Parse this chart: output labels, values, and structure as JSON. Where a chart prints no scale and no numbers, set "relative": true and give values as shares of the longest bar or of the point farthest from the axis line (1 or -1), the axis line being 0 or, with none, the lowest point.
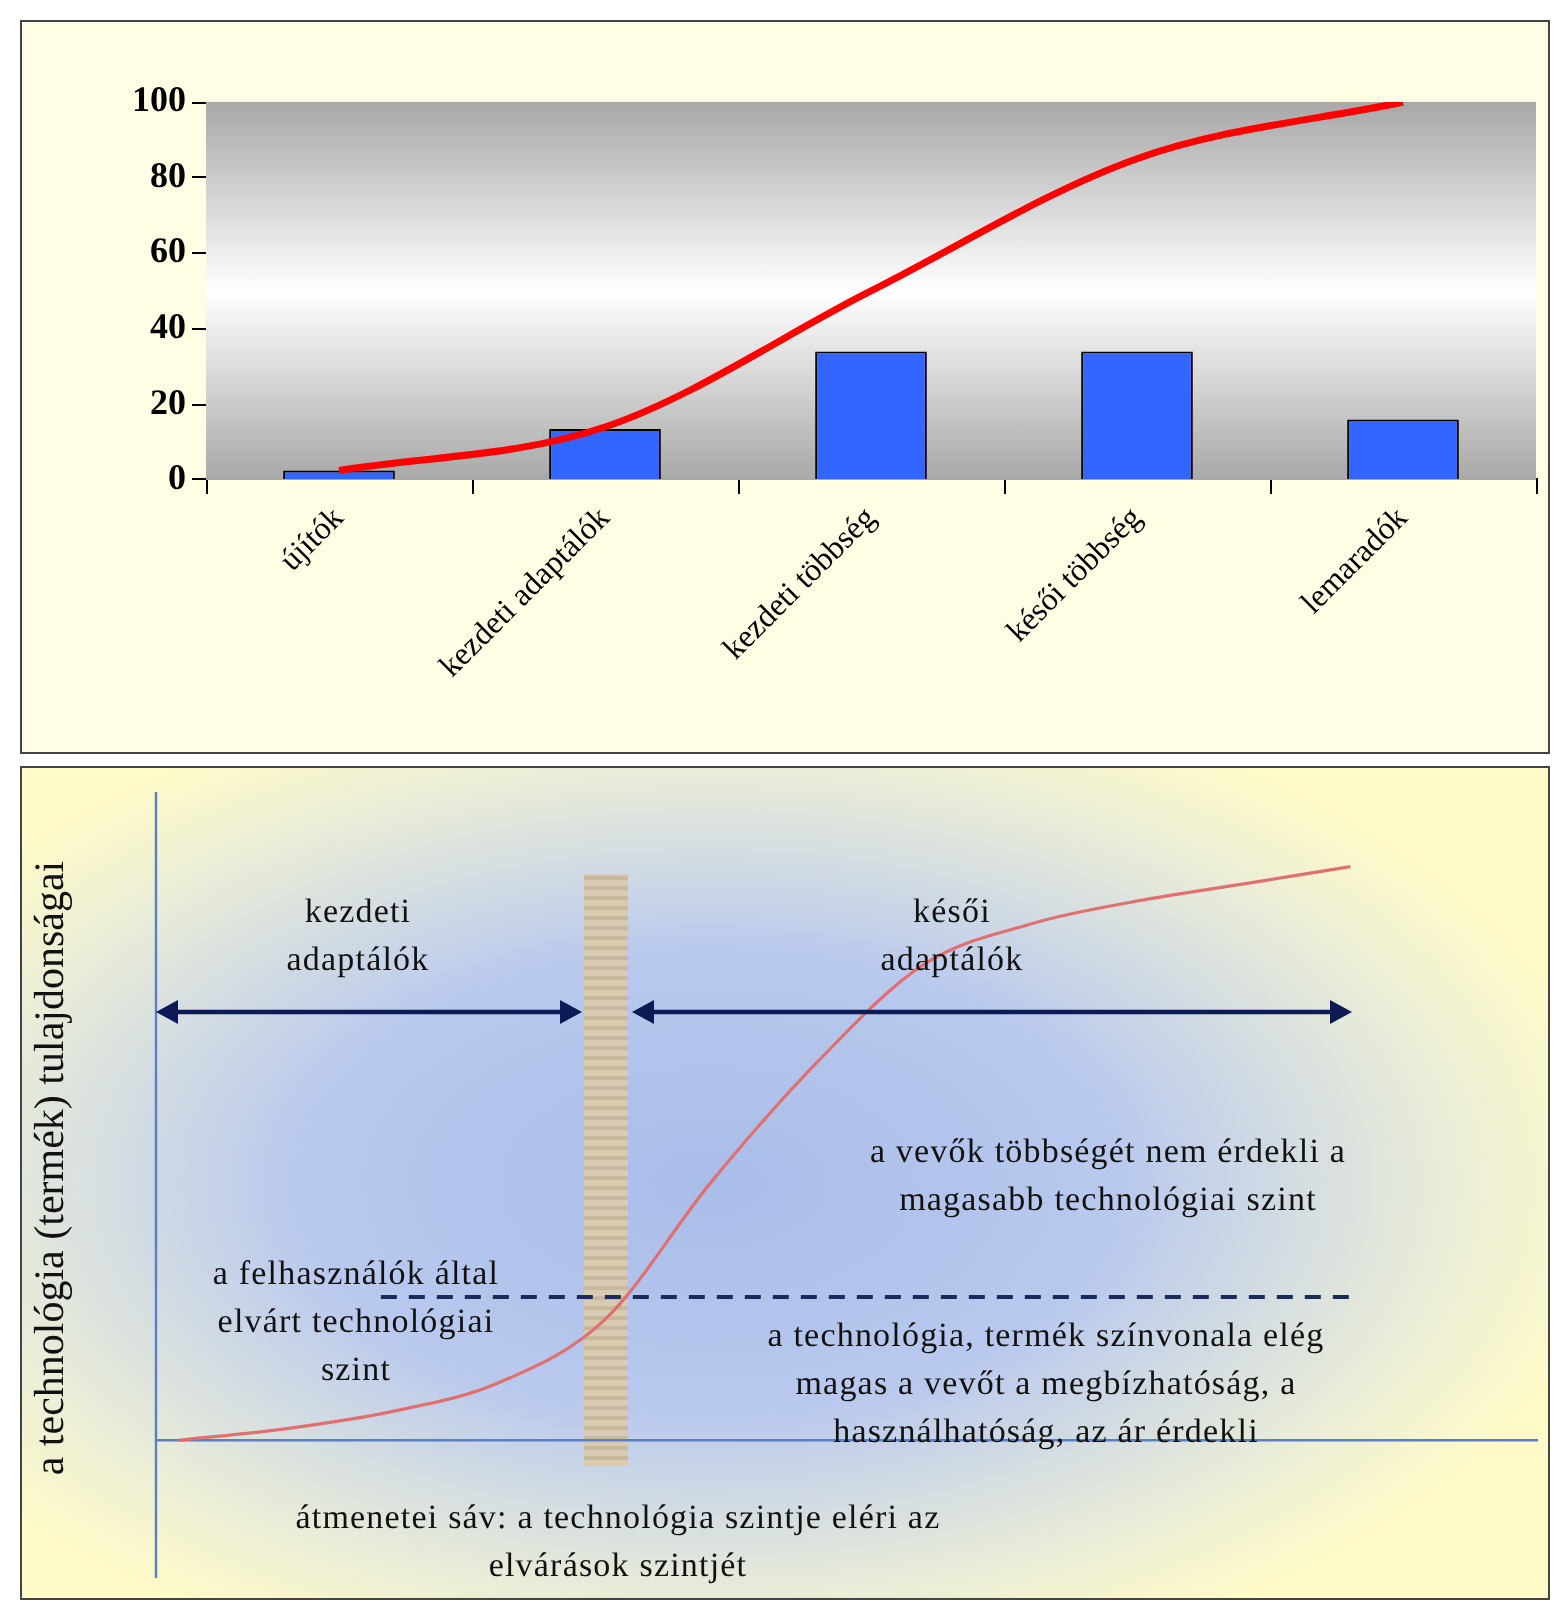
{
  "chart_data": [
    {
      "type": "bar",
      "categories": [
        "újítók",
        "kezdeti adaptálók",
        "kezdeti többség",
        "késői többség",
        "lemaradók"
      ],
      "series": [
        {
          "color": "#3366ff",
          "values": [
            2.5,
            13.5,
            34,
            34,
            16
          ]
        },
        {
          "type": "line",
          "color": "#ff0000",
          "values": [
            2.5,
            14,
            50,
            85,
            100
          ]
        }
      ],
      "ylim": [
        0,
        100
      ],
      "yticks": [
        0,
        20,
        40,
        60,
        80,
        100
      ]
    },
    {
      "type": "line",
      "relative": true,
      "ylabel": "a technológia (termék) tulajdonságai",
      "categories": [
        null,
        null,
        null,
        null,
        null,
        null,
        null,
        null,
        null,
        null,
        null,
        null
      ],
      "series": [
        {
          "color": "#e07070",
          "values": [
            0,
            0.02,
            0.05,
            0.1,
            0.21,
            0.45,
            0.66,
            0.83,
            0.9,
            0.94,
            0.97,
            1
          ]
        }
      ],
      "ref_lines": [
        {
          "axis": "y",
          "value": 0.25,
          "color": "#1a2a5a",
          "line_style": "dashed"
        }
      ],
      "annotations": [
        "kezdeti adaptálók",
        "késői adaptálók",
        "a vevők többségét nem érdekli a magasabb technológiai szint",
        "a felhasználók által elvárt technológiai szint",
        "a technológia, termék színvonala elég magas a vevőt a megbízhatóság, a használhatóság, az ár érdekli",
        "átmenetei sáv: a technológia szintje eléri az elvárások szintjét"
      ]
    }
  ]
}
